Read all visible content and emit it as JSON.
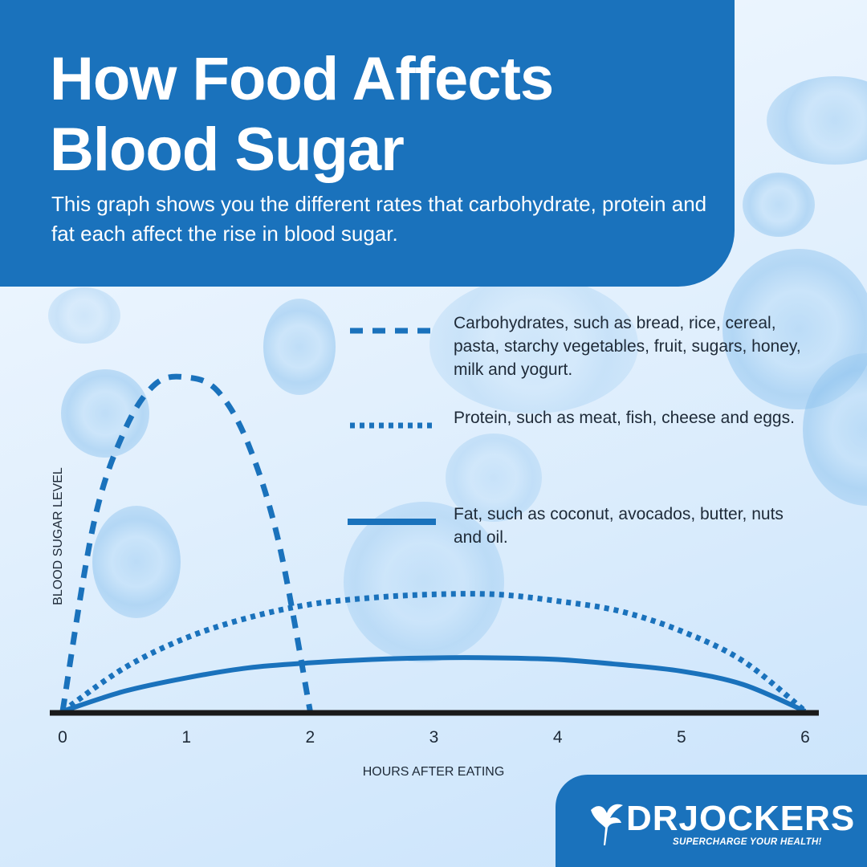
{
  "header": {
    "title_line1": "How Food Affects",
    "title_line2": "Blood Sugar",
    "subtitle": "This graph shows you the different rates that carbohydrate, protein and fat each affect the rise in blood sugar."
  },
  "colors": {
    "brand": "#1a72bc",
    "axis": "#1a1a1a",
    "text": "#1e2a38"
  },
  "legend": [
    {
      "style": "dashed",
      "text": "Carbohydrates, such as bread, rice, cereal, pasta, starchy vegetables, fruit, sugars, honey, milk and yogurt."
    },
    {
      "style": "dotted",
      "text": "Protein, such as meat, fish, cheese and eggs."
    },
    {
      "style": "solid",
      "text": "Fat, such as coconut, avocados, butter, nuts and oil."
    }
  ],
  "chart_data": {
    "type": "line",
    "title": "",
    "xlabel": "HOURS AFTER EATING",
    "ylabel": "BLOOD SUGAR LEVEL",
    "xlim": [
      0,
      6
    ],
    "ylim": [
      0,
      1
    ],
    "x_ticks": [
      "0",
      "1",
      "2",
      "3",
      "4",
      "5",
      "6"
    ],
    "y_ticks": [],
    "grid": false,
    "legend_position": "top-right",
    "series": [
      {
        "style": "dashed",
        "x": [
          0,
          0.25,
          0.5,
          0.75,
          1,
          1.25,
          1.5,
          1.75,
          2
        ],
        "y": [
          0,
          0.56,
          0.84,
          0.98,
          1.0,
          0.96,
          0.8,
          0.5,
          0
        ]
      },
      {
        "style": "dotted",
        "x": [
          0,
          0.5,
          1,
          1.5,
          2,
          2.5,
          3,
          3.5,
          4,
          4.5,
          5,
          5.5,
          6
        ],
        "y": [
          0,
          0.13,
          0.22,
          0.28,
          0.32,
          0.34,
          0.35,
          0.35,
          0.33,
          0.3,
          0.24,
          0.15,
          0
        ]
      },
      {
        "style": "solid",
        "x": [
          0,
          0.5,
          1,
          1.5,
          2,
          2.5,
          3,
          3.5,
          4,
          4.5,
          5,
          5.5,
          6
        ],
        "y": [
          0,
          0.06,
          0.1,
          0.13,
          0.145,
          0.155,
          0.16,
          0.16,
          0.155,
          0.14,
          0.12,
          0.08,
          0
        ]
      }
    ]
  },
  "brand": {
    "name": "DRJOCKERS",
    "tagline": "SUPERCHARGE YOUR HEALTH!"
  }
}
